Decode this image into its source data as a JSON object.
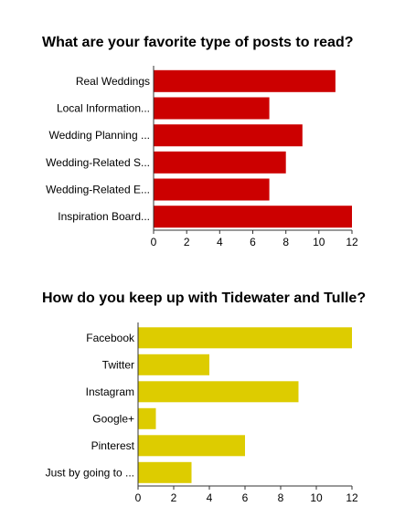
{
  "chart_data": [
    {
      "type": "bar",
      "orientation": "horizontal",
      "title": "What are your favorite type of posts to read?",
      "categories": [
        "Real Weddings",
        "Local Information...",
        "Wedding Planning ...",
        "Wedding-Related S...",
        "Wedding-Related E...",
        "Inspiration Board..."
      ],
      "values": [
        11,
        7,
        9,
        8,
        7,
        12
      ],
      "xlim": [
        0,
        12
      ],
      "xticks": [
        0,
        2,
        4,
        6,
        8,
        10,
        12
      ],
      "color": "#cc0000",
      "grid": false,
      "legend": false
    },
    {
      "type": "bar",
      "orientation": "horizontal",
      "title": "How do you keep up with Tidewater and Tulle?",
      "categories": [
        "Facebook",
        "Twitter",
        "Instagram",
        "Google+",
        "Pinterest",
        "Just by going to ..."
      ],
      "values": [
        12,
        4,
        9,
        1,
        6,
        3
      ],
      "xlim": [
        0,
        12
      ],
      "xticks": [
        0,
        2,
        4,
        6,
        8,
        10,
        12
      ],
      "color": "#ddcc00",
      "grid": false,
      "legend": false
    }
  ]
}
